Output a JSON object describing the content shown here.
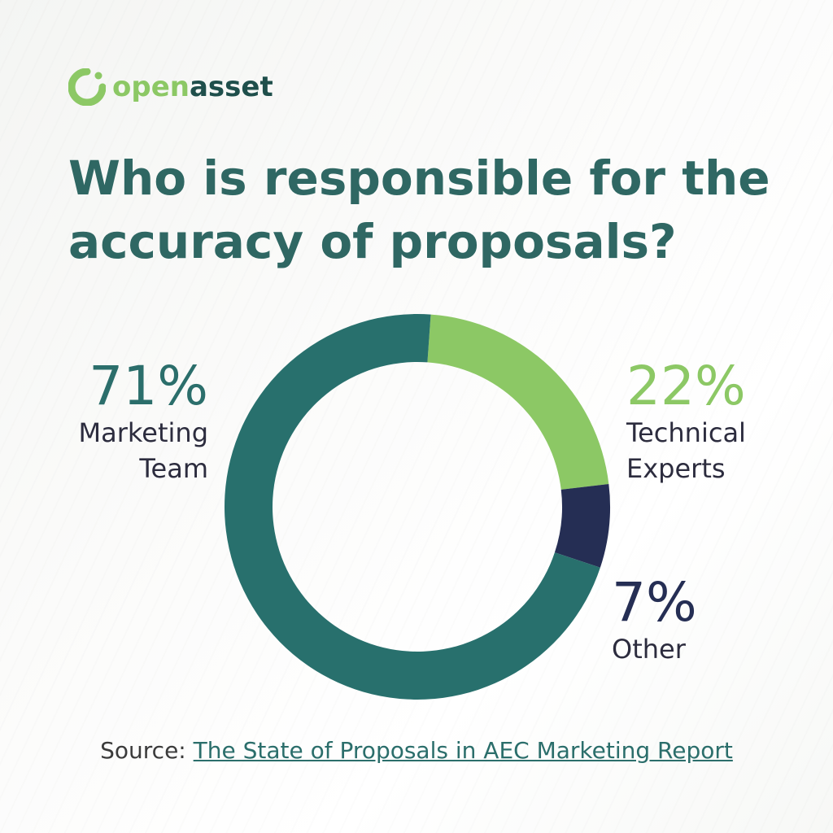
{
  "brand": {
    "name_part1": "open",
    "name_part2": "asset",
    "icon": "openasset-logo-icon",
    "colors": {
      "green": "#8cc865",
      "dark": "#1f4f4b"
    }
  },
  "chart_data": {
    "type": "pie",
    "style": "donut",
    "title": "Who is responsible for the accuracy of proposals?",
    "series": [
      {
        "name": "Marketing Team",
        "value": 71,
        "label": "71%",
        "color": "#28706d",
        "name_lines": [
          "Marketing",
          "Team"
        ]
      },
      {
        "name": "Technical Experts",
        "value": 22,
        "label": "22%",
        "color": "#8cc865",
        "name_lines": [
          "Technical",
          "Experts"
        ]
      },
      {
        "name": "Other",
        "value": 7,
        "label": "7%",
        "color": "#252e54",
        "name_lines": [
          "Other"
        ]
      }
    ],
    "legend": "none"
  },
  "source": {
    "prefix": "Source: ",
    "link_text": "The State of Proposals in AEC Marketing Report"
  }
}
